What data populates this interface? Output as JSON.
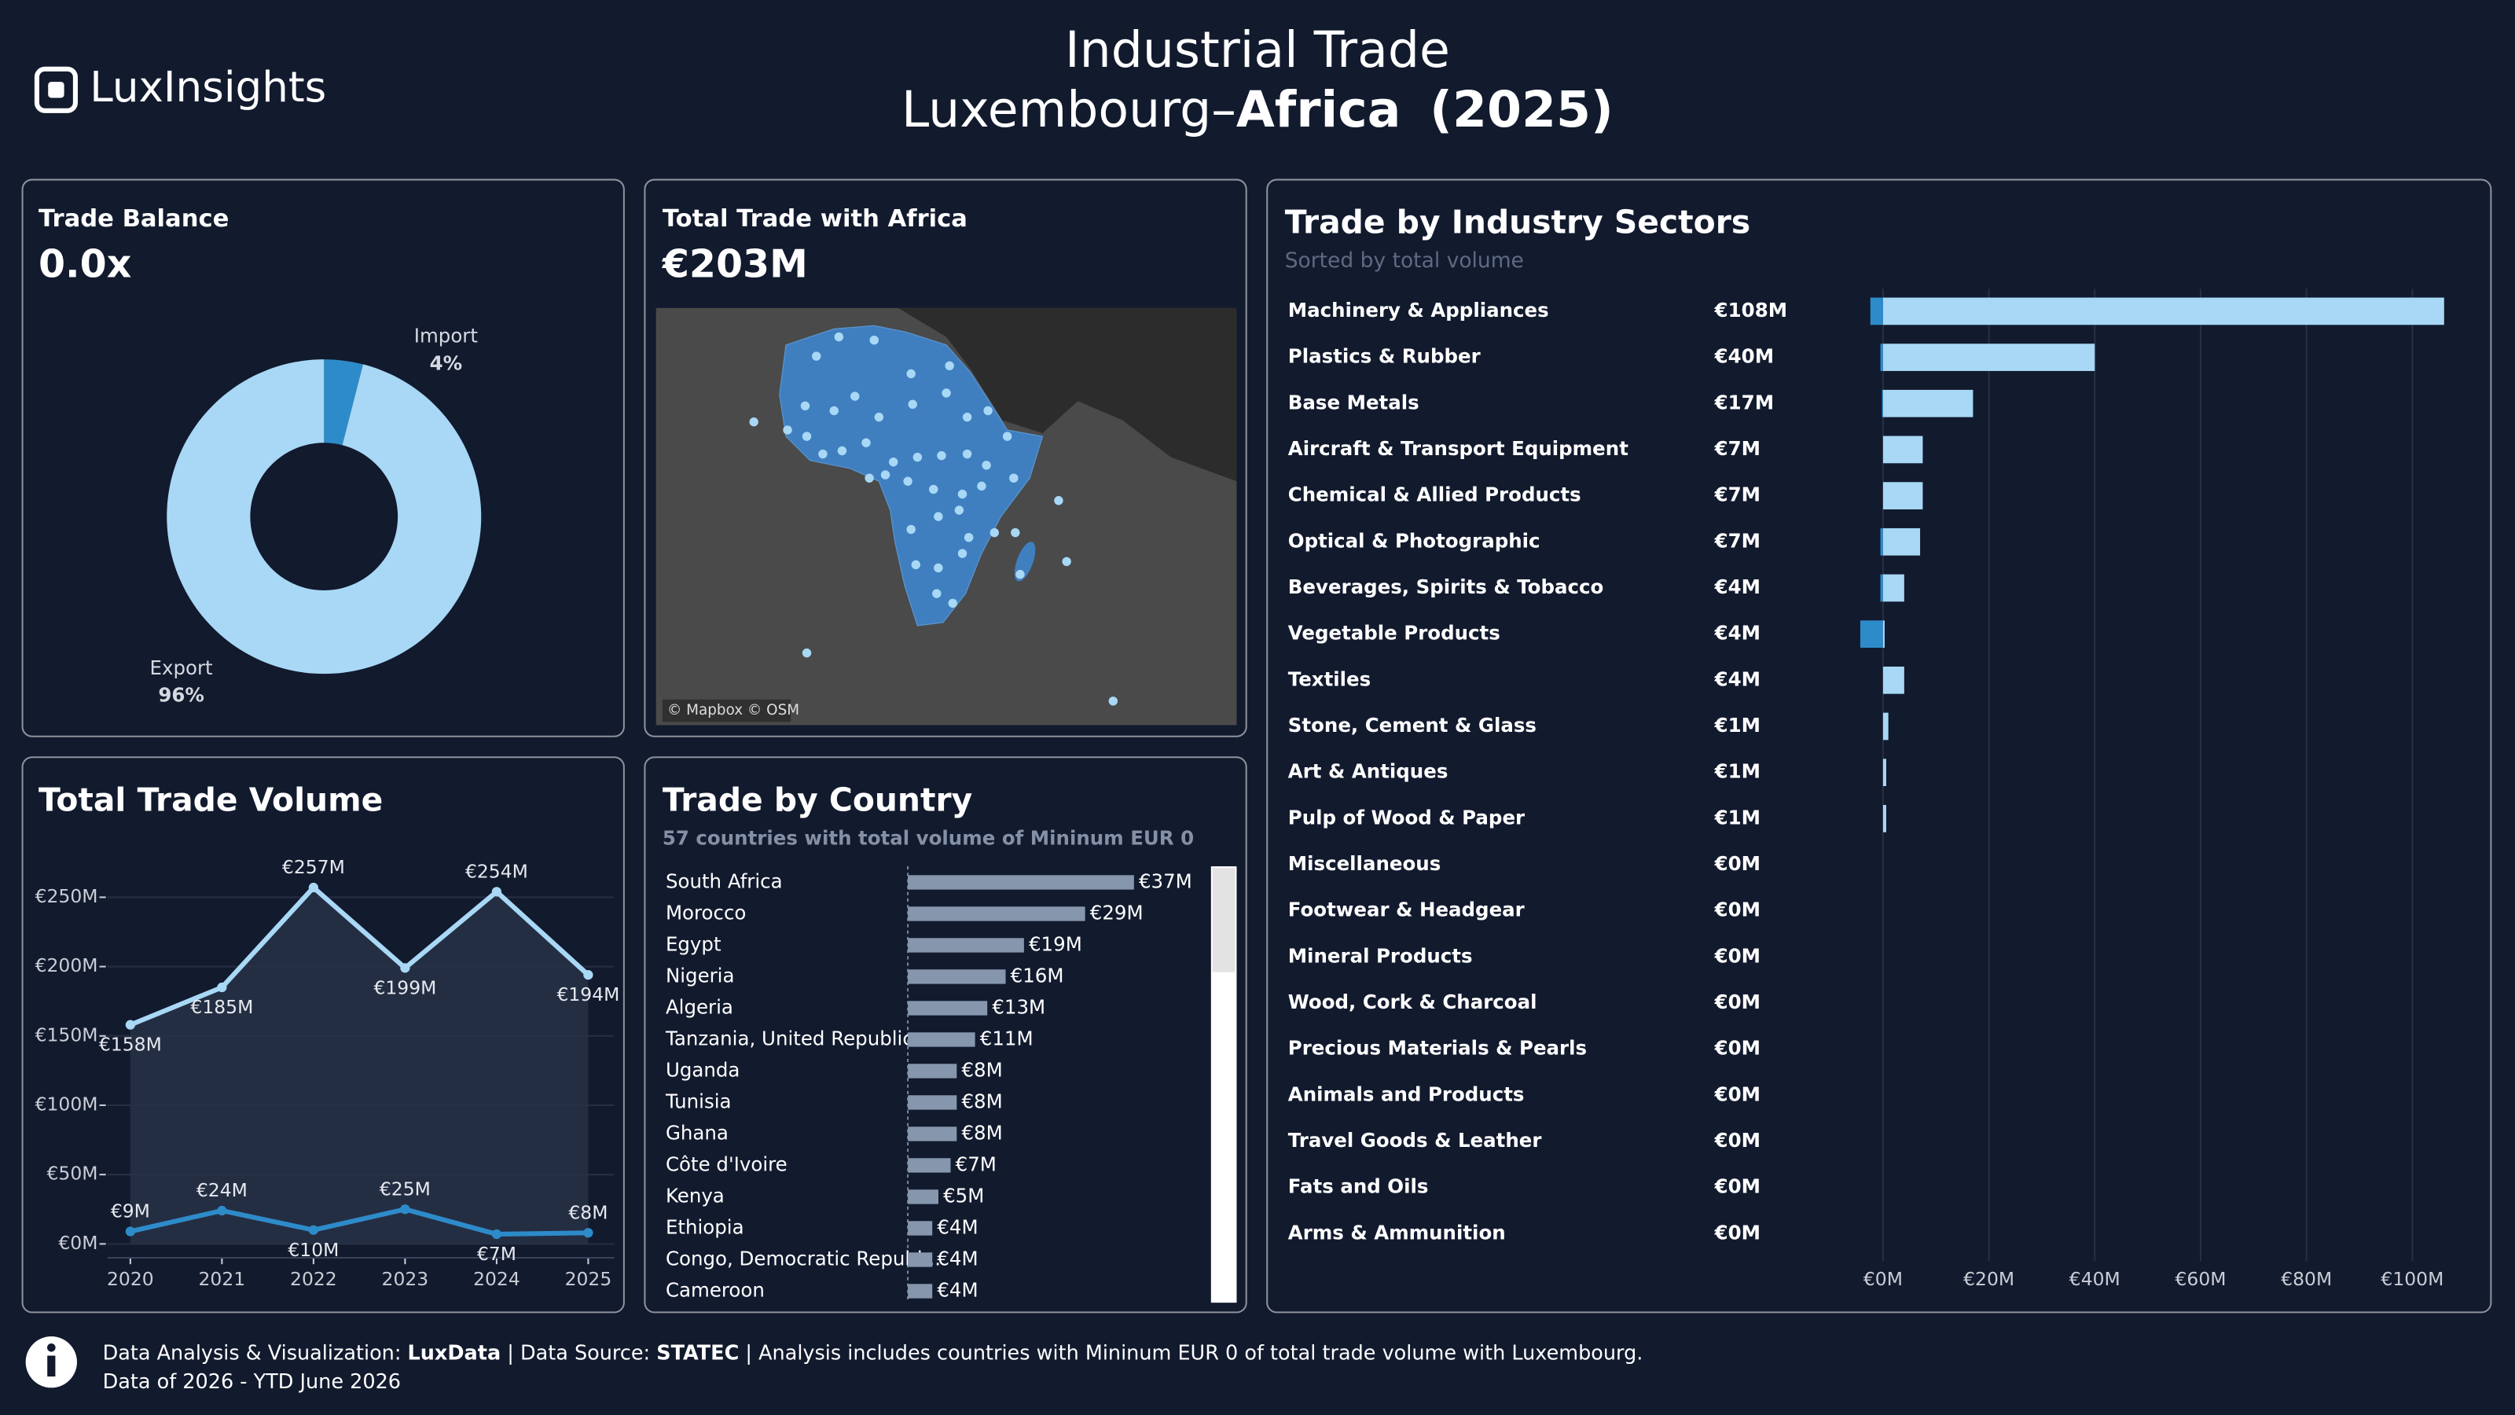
{
  "header": {
    "logo": "LuxInsights",
    "title_line1": "Industrial Trade",
    "title_prefix": "Luxembourg–",
    "title_bold": "Africa",
    "title_year": "(2025)"
  },
  "map_card": {
    "title": "Total Trade with Africa",
    "value": "€203M",
    "attribution": "© Mapbox © OSM"
  },
  "chart_data": [
    {
      "type": "donut",
      "title": "Trade Balance",
      "kpi": "0.0x",
      "categories": [
        "Import",
        "Export"
      ],
      "values": [
        4,
        96
      ],
      "value_labels": [
        "4%",
        "96%"
      ],
      "colors": [
        "#2e8bc9",
        "#a8d8f5"
      ]
    },
    {
      "type": "line",
      "title": "Total Trade Volume",
      "x": [
        2020,
        2021,
        2022,
        2023,
        2024,
        2025
      ],
      "xlim": [
        2019.75,
        2025.25
      ],
      "xticks": [
        2020,
        2021,
        2022,
        2023,
        2024,
        2025
      ],
      "ylim": [
        -10,
        270
      ],
      "yticks": [
        {
          "value": 0,
          "label": "€0M"
        },
        {
          "value": 50,
          "label": "€50M"
        },
        {
          "value": 100,
          "label": "€100M"
        },
        {
          "value": 150,
          "label": "€150M"
        },
        {
          "value": 200,
          "label": "€200M"
        },
        {
          "value": 250,
          "label": "€250M"
        }
      ],
      "grid": true,
      "series": [
        {
          "color": "#a8d8f5",
          "area": true,
          "values": [
            158,
            185,
            257,
            199,
            254,
            194
          ],
          "value_labels": [
            "€158M",
            "€185M",
            "€257M",
            "€199M",
            "€254M",
            "€194M"
          ]
        },
        {
          "color": "#2e8bc9",
          "area": false,
          "values": [
            9,
            24,
            10,
            25,
            7,
            8
          ],
          "value_labels": [
            "€9M",
            "€24M",
            "€10M",
            "€25M",
            "€7M",
            "€8M"
          ]
        }
      ]
    },
    {
      "type": "hbar",
      "title": "Trade by Country",
      "subtitle": "57 countries with total volume of Mininum EUR 0",
      "color": "#8596ad",
      "categories": [
        "South Africa",
        "Morocco",
        "Egypt",
        "Nigeria",
        "Algeria",
        "Tanzania, United Republic ..",
        "Uganda",
        "Tunisia",
        "Ghana",
        "Côte d'Ivoire",
        "Kenya",
        "Ethiopia",
        "Congo, Democratic Republ...",
        "Cameroon"
      ],
      "values": [
        37,
        29,
        19,
        16,
        13,
        11,
        8,
        8,
        8,
        7,
        5,
        4,
        4,
        4
      ],
      "value_labels": [
        "€37M",
        "€29M",
        "€19M",
        "€16M",
        "€13M",
        "€11M",
        "€8M",
        "€8M",
        "€8M",
        "€7M",
        "€5M",
        "€4M",
        "€4M",
        "€4M"
      ]
    },
    {
      "type": "diverging-bar",
      "title": "Trade by Industry Sectors",
      "subtitle": "Sorted by total volume",
      "categories": [
        "Machinery & Appliances",
        "Plastics & Rubber",
        "Base Metals",
        "Aircraft & Transport Equipment",
        "Chemical & Allied Products",
        "Optical & Photographic",
        "Beverages, Spirits & Tobacco",
        "Vegetable Products",
        "Textiles",
        "Stone, Cement & Glass",
        "Art & Antiques",
        "Pulp of Wood & Paper",
        "Miscellaneous",
        "Footwear & Headgear",
        "Mineral Products",
        "Wood, Cork & Charcoal",
        "Precious Materials & Pearls",
        "Animals and Products",
        "Travel Goods & Leather",
        "Fats and Oils",
        "Arms & Ammunition"
      ],
      "totals": [
        108,
        40,
        17,
        7,
        7,
        7,
        4,
        4,
        4,
        1,
        1,
        1,
        0,
        0,
        0,
        0,
        0,
        0,
        0,
        0,
        0
      ],
      "value_labels": [
        "€108M",
        "€40M",
        "€17M",
        "€7M",
        "€7M",
        "€7M",
        "€4M",
        "€4M",
        "€4M",
        "€1M",
        "€1M",
        "€1M",
        "€0M",
        "€0M",
        "€0M",
        "€0M",
        "€0M",
        "€0M",
        "€0M",
        "€0M",
        "€0M"
      ],
      "series": [
        {
          "color": "#2e8bc9",
          "values": [
            -2.4,
            -0.5,
            -0.2,
            0,
            0,
            -0.5,
            -0.5,
            -4.3,
            0,
            0,
            0,
            0,
            0,
            0,
            0,
            0,
            0,
            0,
            0,
            0,
            0
          ]
        },
        {
          "color": "#a8d8f5",
          "values": [
            106,
            40,
            17,
            7.5,
            7.5,
            7,
            4,
            0.3,
            4,
            1,
            0.6,
            0.6,
            0,
            0,
            0,
            0,
            0,
            0,
            0,
            0,
            0
          ]
        }
      ],
      "xlim": [
        -5,
        112
      ],
      "xticks": [
        {
          "value": 0,
          "label": "€0M"
        },
        {
          "value": 20,
          "label": "€20M"
        },
        {
          "value": 40,
          "label": "€40M"
        },
        {
          "value": 60,
          "label": "€60M"
        },
        {
          "value": 80,
          "label": "€80M"
        },
        {
          "value": 100,
          "label": "€100M"
        }
      ],
      "grid": true
    }
  ],
  "footer": {
    "line1": [
      "Data Analysis & Visualization: ",
      "LuxData",
      " | Data Source: ",
      "STATEC",
      " | Analysis includes countries with Mininum EUR 0 of total trade volume with Luxembourg."
    ],
    "line2": "Data of 2026 - YTD June 2026"
  }
}
